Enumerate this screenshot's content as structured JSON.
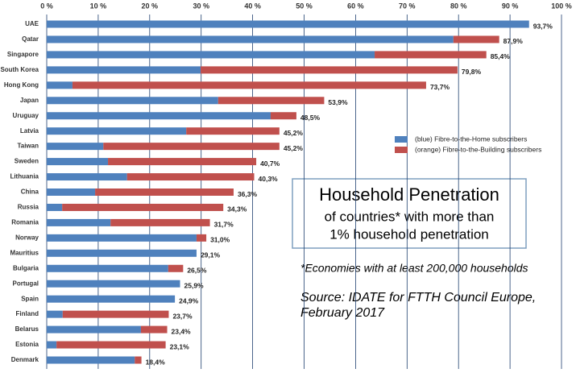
{
  "chart_data": {
    "type": "stacked-bar-horizontal",
    "categories": [
      "UAE",
      "Qatar",
      "Singapore",
      "South Korea",
      "Hong Kong",
      "Japan",
      "Uruguay",
      "Latvia",
      "Taiwan",
      "Sweden",
      "Lithuania",
      "China",
      "Russia",
      "Romania",
      "Norway",
      "Mauritius",
      "Bulgaria",
      "Portugal",
      "Spain",
      "Finland",
      "Belarus",
      "Estonia",
      "Denmark"
    ],
    "series": [
      {
        "name": "(blue) Fibre-to-the-Home subscribers",
        "color": "#4f81bd",
        "values": [
          93.7,
          79.0,
          63.7,
          29.9,
          5.0,
          33.3,
          43.5,
          27.1,
          11.0,
          11.9,
          15.6,
          9.4,
          3.0,
          12.4,
          29.1,
          29.1,
          23.6,
          25.9,
          24.9,
          3.1,
          18.3,
          1.9,
          17.1
        ]
      },
      {
        "name": "(orange) Fibre-to-the-Building subscribers",
        "color": "#c0504d",
        "values": [
          0,
          8.9,
          21.7,
          49.9,
          68.7,
          20.6,
          5.0,
          18.1,
          34.2,
          28.8,
          24.7,
          26.9,
          31.3,
          19.3,
          1.9,
          0,
          2.9,
          0,
          0,
          20.6,
          5.1,
          21.2,
          1.3
        ]
      }
    ],
    "totals": {
      "values": [
        93.7,
        87.9,
        85.4,
        79.8,
        73.7,
        53.9,
        48.5,
        45.2,
        45.2,
        40.7,
        40.3,
        36.3,
        34.3,
        31.7,
        31.0,
        29.1,
        26.5,
        25.9,
        24.9,
        23.7,
        23.4,
        23.1,
        18.4
      ],
      "value_labels": [
        "93,7%",
        "87,9%",
        "85,4%",
        "79,8%",
        "73,7%",
        "53,9%",
        "48,5%",
        "45,2%",
        "45,2%",
        "40,7%",
        "40,3%",
        "36,3%",
        "34,3%",
        "31,7%",
        "31,0%",
        "29,1%",
        "26,5%",
        "25,9%",
        "24,9%",
        "23,7%",
        "23,4%",
        "23,1%",
        "18,4%"
      ]
    },
    "xlim": [
      0,
      100
    ],
    "xticks": [
      {
        "value": 0,
        "label": "0 %"
      },
      {
        "value": 10,
        "label": "10 %"
      },
      {
        "value": 20,
        "label": "20 %"
      },
      {
        "value": 30,
        "label": "30 %"
      },
      {
        "value": 40,
        "label": "40 %"
      },
      {
        "value": 50,
        "label": "50 %"
      },
      {
        "value": 60,
        "label": "60 %"
      },
      {
        "value": 70,
        "label": "70 %"
      },
      {
        "value": 80,
        "label": "80 %"
      },
      {
        "value": 90,
        "label": "90 %"
      },
      {
        "value": 100,
        "label": "100 %"
      }
    ],
    "grid": true,
    "legend_position": "right",
    "annotations": {
      "box": [
        "Household Penetration",
        "of countries* with more than",
        "1% household penetration"
      ],
      "notes": [
        "*Economies with at least 200,000 households",
        "Source: IDATE for FTTH Council Europe,",
        "February 2017"
      ]
    }
  }
}
